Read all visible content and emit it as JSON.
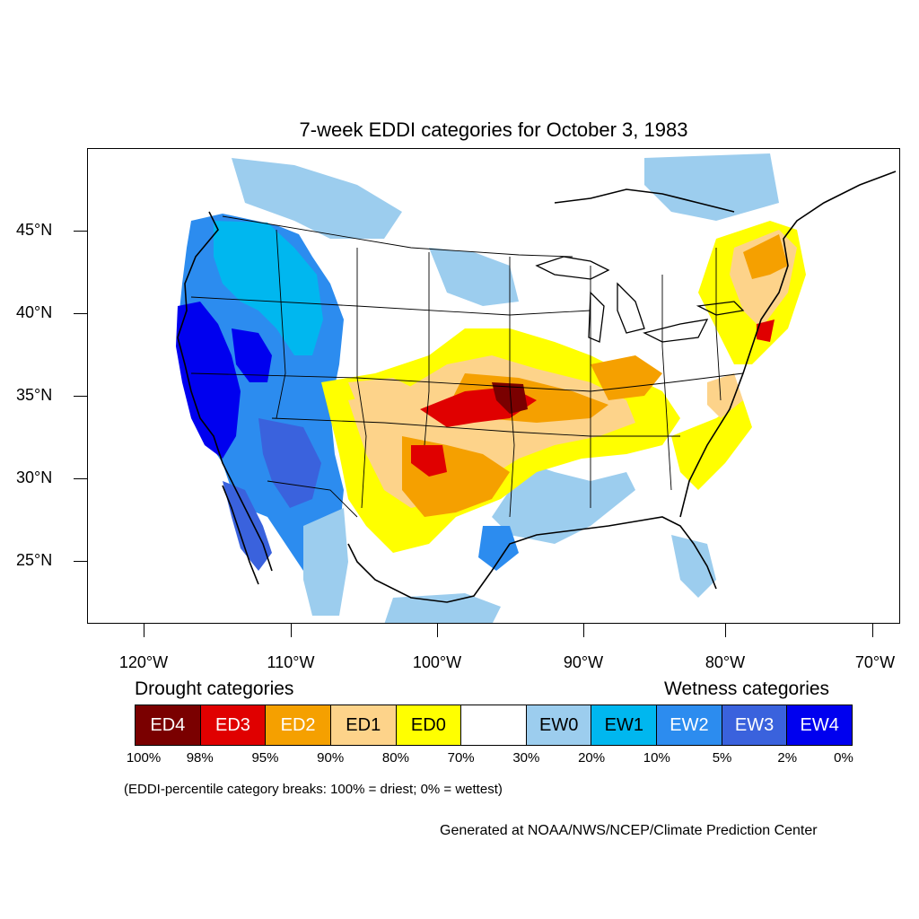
{
  "title": "7-week EDDI categories for October 3, 1983",
  "map": {
    "lat_labels": [
      "45°N",
      "40°N",
      "35°N",
      "30°N",
      "25°N"
    ],
    "lon_labels": [
      "120°W",
      "110°W",
      "100°W",
      "90°W",
      "80°W",
      "70°W"
    ]
  },
  "legend": {
    "drought_heading": "Drought categories",
    "wetness_heading": "Wetness categories",
    "categories": [
      {
        "label": "ED4",
        "color": "#7a0000",
        "text_color": "#ffffff"
      },
      {
        "label": "ED3",
        "color": "#e00000",
        "text_color": "#ffffff"
      },
      {
        "label": "ED2",
        "color": "#f5a000",
        "text_color": "#ffffff"
      },
      {
        "label": "ED1",
        "color": "#fdd38a",
        "text_color": "#000000"
      },
      {
        "label": "ED0",
        "color": "#ffff00",
        "text_color": "#000000"
      },
      {
        "label": "",
        "color": "#ffffff",
        "text_color": "#000000"
      },
      {
        "label": "EW0",
        "color": "#9ccdee",
        "text_color": "#000000"
      },
      {
        "label": "EW1",
        "color": "#00b7ef",
        "text_color": "#000000"
      },
      {
        "label": "EW2",
        "color": "#2c8cef",
        "text_color": "#ffffff"
      },
      {
        "label": "EW3",
        "color": "#3a62dd",
        "text_color": "#ffffff"
      },
      {
        "label": "EW4",
        "color": "#0000ef",
        "text_color": "#ffffff"
      }
    ],
    "percentiles": [
      "100%",
      "98%",
      "95%",
      "90%",
      "80%",
      "70%",
      "30%",
      "20%",
      "10%",
      "5%",
      "2%",
      "0%"
    ]
  },
  "note": "(EDDI-percentile category breaks: 100% = driest; 0% = wettest)",
  "credit": "Generated at NOAA/NWS/NCEP/Climate Prediction Center"
}
